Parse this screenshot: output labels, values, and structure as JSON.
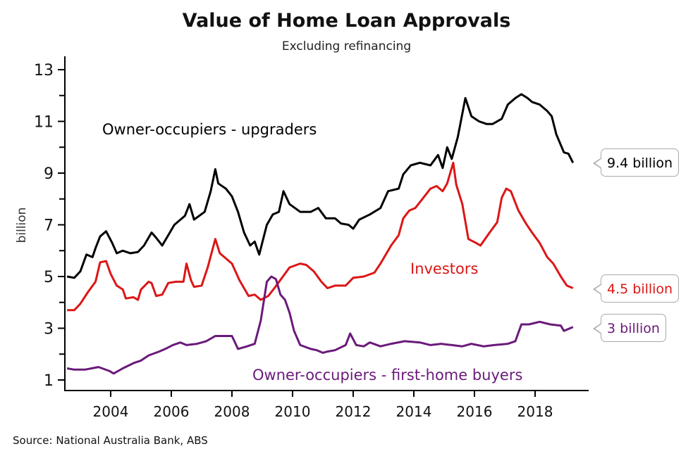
{
  "chart_data": {
    "type": "line",
    "title": "Value of Home Loan Approvals",
    "subtitle": "Excluding refinancing",
    "xlabel": "",
    "ylabel": "billion",
    "xlim": [
      2002.5,
      2019.7
    ],
    "ylim": [
      0.6,
      13.4
    ],
    "yticks": [
      1,
      3,
      5,
      7,
      9,
      11,
      13
    ],
    "yminor": [
      2,
      4,
      6,
      8,
      10,
      12
    ],
    "xticks": [
      2004,
      2006,
      2008,
      2010,
      2012,
      2014,
      2016,
      2018
    ],
    "ytick_labels": [
      "1",
      "3",
      "5",
      "7",
      "9",
      "11",
      "13"
    ],
    "xtick_labels": [
      "2004",
      "2006",
      "2008",
      "2010",
      "2012",
      "2014",
      "2016",
      "2018"
    ],
    "grid": false,
    "source": "Source: National Australia Bank, ABS",
    "series": [
      {
        "name": "Owner-occupiers - upgraders",
        "color": "#000000",
        "end_label": "9.4 billion",
        "x": [
          2002.56,
          2002.8,
          2003.0,
          2003.2,
          2003.4,
          2003.5,
          2003.65,
          2003.85,
          2004.05,
          2004.2,
          2004.4,
          2004.65,
          2004.9,
          2005.1,
          2005.35,
          2005.5,
          2005.7,
          2005.95,
          2006.1,
          2006.45,
          2006.6,
          2006.75,
          2007.1,
          2007.3,
          2007.45,
          2007.55,
          2007.8,
          2008.0,
          2008.2,
          2008.4,
          2008.6,
          2008.75,
          2008.9,
          2009.15,
          2009.35,
          2009.55,
          2009.7,
          2009.9,
          2010.25,
          2010.6,
          2010.85,
          2011.1,
          2011.4,
          2011.6,
          2011.85,
          2012.0,
          2012.2,
          2012.55,
          2012.9,
          2013.15,
          2013.5,
          2013.65,
          2013.9,
          2014.2,
          2014.55,
          2014.8,
          2014.95,
          2015.1,
          2015.25,
          2015.45,
          2015.7,
          2015.9,
          2016.15,
          2016.4,
          2016.6,
          2016.9,
          2017.1,
          2017.35,
          2017.55,
          2017.75,
          2017.9,
          2018.15,
          2018.4,
          2018.55,
          2018.7,
          2018.95,
          2019.1,
          2019.25
        ],
        "y": [
          5.0,
          4.95,
          5.2,
          5.85,
          5.75,
          6.1,
          6.55,
          6.75,
          6.3,
          5.9,
          6.0,
          5.9,
          5.95,
          6.2,
          6.7,
          6.5,
          6.2,
          6.7,
          7.0,
          7.35,
          7.8,
          7.2,
          7.5,
          8.3,
          9.15,
          8.6,
          8.4,
          8.1,
          7.5,
          6.7,
          6.2,
          6.35,
          5.85,
          7.0,
          7.4,
          7.5,
          8.3,
          7.8,
          7.5,
          7.5,
          7.65,
          7.25,
          7.25,
          7.05,
          7.0,
          6.85,
          7.2,
          7.4,
          7.65,
          8.3,
          8.4,
          8.95,
          9.3,
          9.4,
          9.3,
          9.7,
          9.2,
          10.0,
          9.55,
          10.4,
          11.9,
          11.2,
          11.0,
          10.9,
          10.9,
          11.1,
          11.65,
          11.9,
          12.05,
          11.9,
          11.75,
          11.65,
          11.4,
          11.2,
          10.5,
          9.8,
          9.75,
          9.4
        ]
      },
      {
        "name": "Investors",
        "color": "#dc1616",
        "end_label": "4.5 billion",
        "x": [
          2002.56,
          2002.8,
          2003.0,
          2003.25,
          2003.5,
          2003.65,
          2003.85,
          2004.0,
          2004.2,
          2004.4,
          2004.5,
          2004.75,
          2004.9,
          2005.0,
          2005.25,
          2005.35,
          2005.5,
          2005.7,
          2005.9,
          2006.15,
          2006.4,
          2006.5,
          2006.65,
          2006.75,
          2007.0,
          2007.2,
          2007.45,
          2007.6,
          2007.8,
          2008.0,
          2008.25,
          2008.55,
          2008.75,
          2008.95,
          2009.2,
          2009.4,
          2009.65,
          2009.9,
          2010.25,
          2010.45,
          2010.7,
          2010.95,
          2011.15,
          2011.4,
          2011.75,
          2012.0,
          2012.35,
          2012.7,
          2012.9,
          2013.25,
          2013.5,
          2013.65,
          2013.85,
          2014.05,
          2014.25,
          2014.55,
          2014.75,
          2014.95,
          2015.1,
          2015.3,
          2015.4,
          2015.6,
          2015.8,
          2016.05,
          2016.2,
          2016.5,
          2016.75,
          2016.9,
          2017.05,
          2017.2,
          2017.45,
          2017.7,
          2017.9,
          2018.15,
          2018.4,
          2018.6,
          2018.85,
          2019.05,
          2019.25
        ],
        "y": [
          3.7,
          3.7,
          3.95,
          4.4,
          4.8,
          5.55,
          5.6,
          5.1,
          4.65,
          4.5,
          4.15,
          4.2,
          4.1,
          4.5,
          4.8,
          4.75,
          4.25,
          4.3,
          4.75,
          4.8,
          4.8,
          5.5,
          4.85,
          4.6,
          4.65,
          5.35,
          6.45,
          5.9,
          5.7,
          5.5,
          4.85,
          4.25,
          4.3,
          4.1,
          4.25,
          4.55,
          4.95,
          5.35,
          5.5,
          5.45,
          5.2,
          4.8,
          4.55,
          4.65,
          4.65,
          4.95,
          5.0,
          5.15,
          5.5,
          6.2,
          6.6,
          7.25,
          7.55,
          7.65,
          7.95,
          8.4,
          8.5,
          8.3,
          8.6,
          9.4,
          8.55,
          7.8,
          6.45,
          6.3,
          6.2,
          6.7,
          7.1,
          8.05,
          8.4,
          8.3,
          7.55,
          7.05,
          6.7,
          6.3,
          5.75,
          5.5,
          5.0,
          4.65,
          4.55
        ]
      },
      {
        "name": "Owner-occupiers - first-home buyers",
        "color": "#6a1a7a",
        "end_label": "3 billion",
        "x": [
          2002.56,
          2002.8,
          2003.15,
          2003.6,
          2003.95,
          2004.1,
          2004.4,
          2004.75,
          2005.0,
          2005.25,
          2005.6,
          2005.8,
          2006.05,
          2006.3,
          2006.5,
          2006.85,
          2007.15,
          2007.45,
          2007.65,
          2008.0,
          2008.2,
          2008.5,
          2008.75,
          2008.95,
          2009.15,
          2009.3,
          2009.45,
          2009.6,
          2009.75,
          2009.9,
          2010.05,
          2010.25,
          2010.6,
          2010.8,
          2011.0,
          2011.15,
          2011.4,
          2011.75,
          2011.9,
          2012.1,
          2012.35,
          2012.55,
          2012.9,
          2013.25,
          2013.7,
          2014.2,
          2014.55,
          2014.9,
          2015.25,
          2015.6,
          2015.9,
          2016.3,
          2016.65,
          2017.1,
          2017.35,
          2017.55,
          2017.8,
          2018.15,
          2018.5,
          2018.85,
          2018.95,
          2019.25
        ],
        "y": [
          1.45,
          1.4,
          1.4,
          1.5,
          1.35,
          1.25,
          1.45,
          1.65,
          1.75,
          1.95,
          2.1,
          2.2,
          2.35,
          2.45,
          2.35,
          2.4,
          2.5,
          2.7,
          2.7,
          2.7,
          2.2,
          2.3,
          2.4,
          3.3,
          4.8,
          5.0,
          4.9,
          4.3,
          4.1,
          3.6,
          2.9,
          2.35,
          2.2,
          2.15,
          2.05,
          2.1,
          2.15,
          2.35,
          2.8,
          2.35,
          2.3,
          2.45,
          2.3,
          2.4,
          2.5,
          2.45,
          2.35,
          2.4,
          2.35,
          2.3,
          2.4,
          2.3,
          2.35,
          2.4,
          2.5,
          3.15,
          3.15,
          3.25,
          3.15,
          3.1,
          2.9,
          3.05
        ]
      }
    ]
  }
}
